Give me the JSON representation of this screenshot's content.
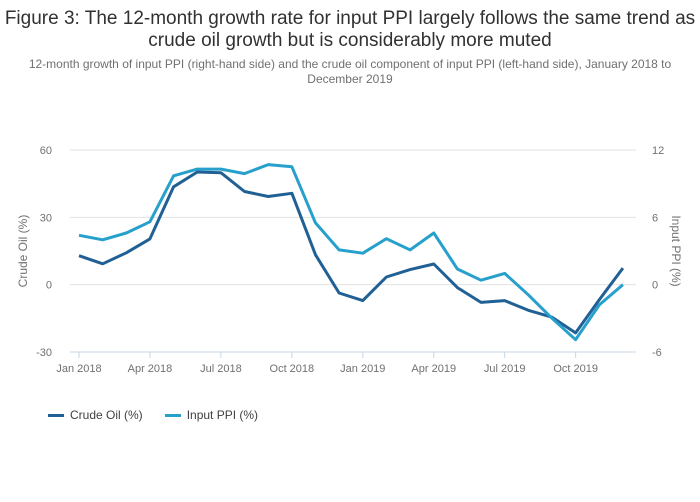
{
  "chart_data": {
    "type": "line",
    "title": "Figure 3: The 12-month growth rate for input PPI largely follows the same trend as crude oil growth but is considerably more muted",
    "subtitle": "12-month growth of input PPI (right-hand side) and the crude oil component of input PPI (left-hand side), January 2018 to December 2019",
    "x": [
      "Jan 2018",
      "Feb 2018",
      "Mar 2018",
      "Apr 2018",
      "May 2018",
      "Jun 2018",
      "Jul 2018",
      "Aug 2018",
      "Sep 2018",
      "Oct 2018",
      "Nov 2018",
      "Dec 2018",
      "Jan 2019",
      "Feb 2019",
      "Mar 2019",
      "Apr 2019",
      "May 2019",
      "Jun 2019",
      "Jul 2019",
      "Aug 2019",
      "Sep 2019",
      "Oct 2019",
      "Nov 2019",
      "Dec 2019"
    ],
    "x_tick_labels": [
      "Jan 2018",
      "Apr 2018",
      "Jul 2018",
      "Oct 2018",
      "Jan 2019",
      "Apr 2019",
      "Jul 2019",
      "Oct 2019"
    ],
    "ylabel": "Crude Oil (%)",
    "ylim": [
      -30,
      60
    ],
    "y_ticks": [
      -30,
      0,
      30,
      60
    ],
    "y2label": "Input PPI (%)",
    "y2lim": [
      -6,
      12
    ],
    "y2_ticks": [
      -6,
      0,
      6,
      12
    ],
    "grid": true,
    "legend_position": "bottom-left",
    "series": [
      {
        "name": "Crude Oil (%)",
        "axis": "left",
        "color": "#206095",
        "values": [
          12.9,
          9.3,
          14.2,
          20.4,
          43.6,
          50.2,
          49.9,
          41.5,
          39.3,
          40.7,
          13.3,
          -3.7,
          -7.1,
          3.4,
          6.7,
          9.2,
          -1.3,
          -7.9,
          -7.1,
          -11.4,
          -14.5,
          -21.5,
          -6.7,
          7.4
        ]
      },
      {
        "name": "Input PPI (%)",
        "axis": "right",
        "color": "#27a0cc",
        "values": [
          4.4,
          4.0,
          4.6,
          5.6,
          9.7,
          10.3,
          10.3,
          9.9,
          10.7,
          10.5,
          5.5,
          3.1,
          2.8,
          4.1,
          3.1,
          4.6,
          1.4,
          0.4,
          1.0,
          -0.9,
          -3.0,
          -4.9,
          -1.8,
          0.0
        ]
      }
    ]
  }
}
